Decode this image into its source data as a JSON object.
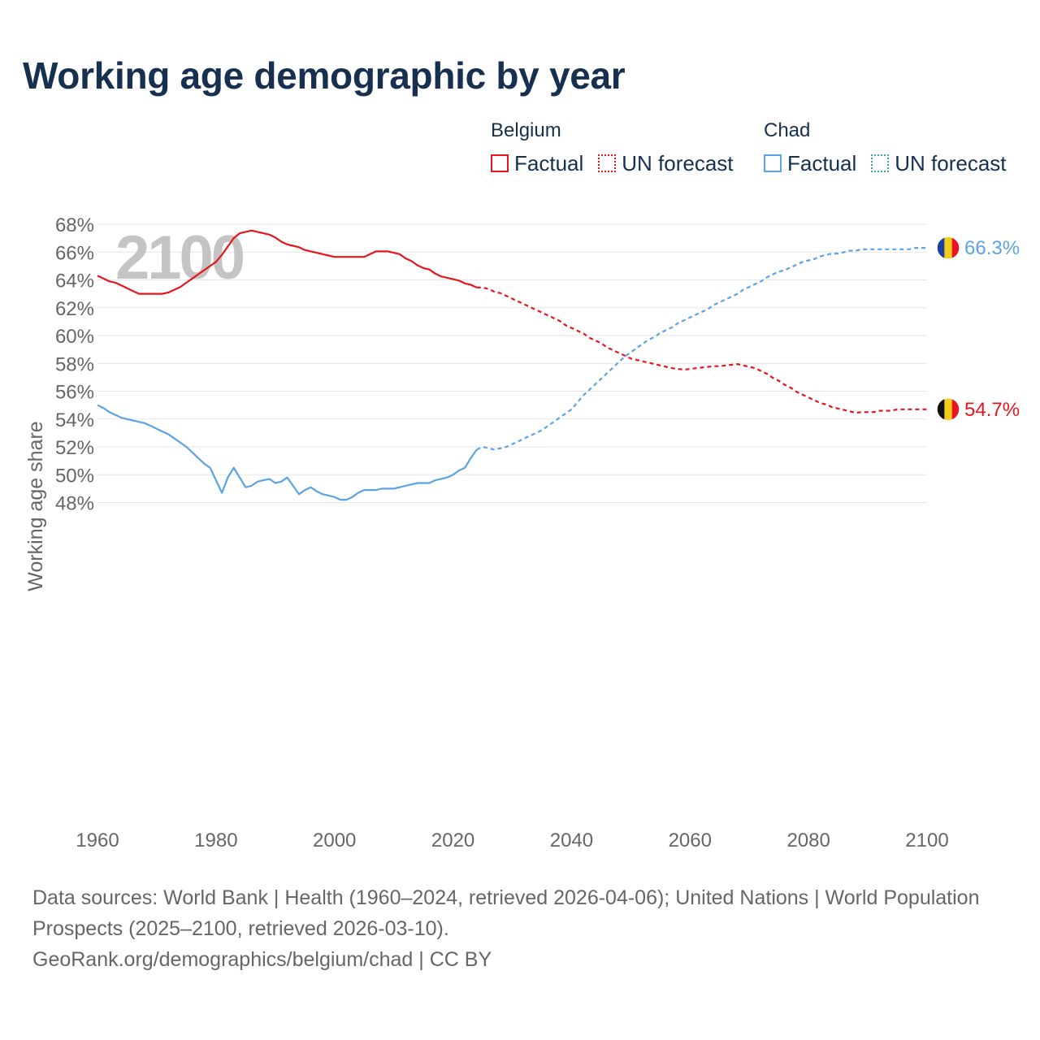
{
  "title": "Working age demographic by year",
  "legend": {
    "groups": [
      {
        "name": "Belgium",
        "color": "#e8141e",
        "factual_label": "Factual",
        "forecast_label": "UN forecast"
      },
      {
        "name": "Chad",
        "color": "#5ba3e4",
        "factual_label": "Factual",
        "forecast_label": "UN forecast"
      }
    ]
  },
  "year_watermark": "2100",
  "end_labels": {
    "belgium": "54.7%",
    "chad": "66.3%"
  },
  "flags": {
    "belgium": [
      "#111111",
      "#f2cc1d",
      "#e8141e"
    ],
    "chad": [
      "#1d3f9e",
      "#f2cc1d",
      "#e8141e"
    ]
  },
  "footer": {
    "sources": "Data sources: World Bank | Health (1960–2024, retrieved 2026-04-06); United Nations | World Population Prospects (2025–2100, retrieved 2026-03-10).",
    "url": "GeoRank.org/demographics/belgium/chad | CC BY"
  },
  "chart_data": {
    "type": "line",
    "title": "Working age demographic by year",
    "xlabel": "",
    "ylabel": "Working age share",
    "xlim": [
      1960,
      2100
    ],
    "ylim": [
      47,
      68
    ],
    "x_ticks": [
      1960,
      1980,
      2000,
      2020,
      2040,
      2060,
      2080,
      2100
    ],
    "y_ticks": [
      48,
      50,
      52,
      54,
      56,
      58,
      60,
      62,
      64,
      66,
      68
    ],
    "y_tick_labels": [
      "48%",
      "50%",
      "52%",
      "54%",
      "56%",
      "58%",
      "60%",
      "62%",
      "64%",
      "66%",
      "68%"
    ],
    "forecast_start": 2025,
    "series": [
      {
        "name": "Belgium",
        "color": "#e8141e",
        "points": [
          [
            1960,
            64.3
          ],
          [
            1961,
            64.1
          ],
          [
            1962,
            63.9
          ],
          [
            1963,
            63.8
          ],
          [
            1964,
            63.6
          ],
          [
            1965,
            63.4
          ],
          [
            1966,
            63.2
          ],
          [
            1967,
            63.0
          ],
          [
            1968,
            63.0
          ],
          [
            1969,
            63.0
          ],
          [
            1970,
            63.0
          ],
          [
            1971,
            63.0
          ],
          [
            1972,
            63.1
          ],
          [
            1973,
            63.3
          ],
          [
            1974,
            63.5
          ],
          [
            1975,
            63.8
          ],
          [
            1976,
            64.1
          ],
          [
            1977,
            64.4
          ],
          [
            1978,
            64.7
          ],
          [
            1979,
            65.0
          ],
          [
            1980,
            65.3
          ],
          [
            1981,
            65.8
          ],
          [
            1982,
            66.4
          ],
          [
            1983,
            67.0
          ],
          [
            1984,
            67.35
          ],
          [
            1985,
            67.45
          ],
          [
            1986,
            67.55
          ],
          [
            1987,
            67.45
          ],
          [
            1988,
            67.35
          ],
          [
            1989,
            67.25
          ],
          [
            1990,
            67.05
          ],
          [
            1991,
            66.75
          ],
          [
            1992,
            66.55
          ],
          [
            1993,
            66.45
          ],
          [
            1994,
            66.35
          ],
          [
            1995,
            66.15
          ],
          [
            1996,
            66.05
          ],
          [
            1997,
            65.95
          ],
          [
            1998,
            65.85
          ],
          [
            1999,
            65.75
          ],
          [
            2000,
            65.65
          ],
          [
            2001,
            65.65
          ],
          [
            2002,
            65.65
          ],
          [
            2003,
            65.65
          ],
          [
            2004,
            65.65
          ],
          [
            2005,
            65.65
          ],
          [
            2006,
            65.85
          ],
          [
            2007,
            66.05
          ],
          [
            2008,
            66.05
          ],
          [
            2009,
            66.05
          ],
          [
            2010,
            65.95
          ],
          [
            2011,
            65.85
          ],
          [
            2012,
            65.55
          ],
          [
            2013,
            65.35
          ],
          [
            2014,
            65.05
          ],
          [
            2015,
            64.85
          ],
          [
            2016,
            64.75
          ],
          [
            2017,
            64.45
          ],
          [
            2018,
            64.25
          ],
          [
            2019,
            64.15
          ],
          [
            2020,
            64.05
          ],
          [
            2021,
            63.95
          ],
          [
            2022,
            63.75
          ],
          [
            2023,
            63.65
          ],
          [
            2024,
            63.45
          ],
          [
            2025,
            63.45
          ],
          [
            2026,
            63.35
          ],
          [
            2027,
            63.15
          ],
          [
            2028,
            63.05
          ],
          [
            2029,
            62.85
          ],
          [
            2030,
            62.65
          ],
          [
            2031,
            62.45
          ],
          [
            2032,
            62.25
          ],
          [
            2033,
            62.05
          ],
          [
            2034,
            61.85
          ],
          [
            2035,
            61.65
          ],
          [
            2036,
            61.45
          ],
          [
            2037,
            61.25
          ],
          [
            2038,
            61.05
          ],
          [
            2039,
            60.75
          ],
          [
            2040,
            60.55
          ],
          [
            2041,
            60.35
          ],
          [
            2042,
            60.15
          ],
          [
            2043,
            59.85
          ],
          [
            2044,
            59.65
          ],
          [
            2045,
            59.45
          ],
          [
            2046,
            59.15
          ],
          [
            2047,
            58.95
          ],
          [
            2048,
            58.75
          ],
          [
            2049,
            58.55
          ],
          [
            2050,
            58.35
          ],
          [
            2051,
            58.25
          ],
          [
            2052,
            58.15
          ],
          [
            2053,
            58.05
          ],
          [
            2054,
            57.95
          ],
          [
            2055,
            57.85
          ],
          [
            2056,
            57.75
          ],
          [
            2057,
            57.65
          ],
          [
            2058,
            57.6
          ],
          [
            2059,
            57.55
          ],
          [
            2060,
            57.6
          ],
          [
            2061,
            57.65
          ],
          [
            2062,
            57.7
          ],
          [
            2063,
            57.75
          ],
          [
            2064,
            57.8
          ],
          [
            2065,
            57.8
          ],
          [
            2066,
            57.85
          ],
          [
            2067,
            57.9
          ],
          [
            2068,
            57.95
          ],
          [
            2069,
            57.85
          ],
          [
            2070,
            57.75
          ],
          [
            2071,
            57.65
          ],
          [
            2072,
            57.45
          ],
          [
            2073,
            57.25
          ],
          [
            2074,
            56.95
          ],
          [
            2075,
            56.75
          ],
          [
            2076,
            56.45
          ],
          [
            2077,
            56.25
          ],
          [
            2078,
            55.95
          ],
          [
            2079,
            55.75
          ],
          [
            2080,
            55.55
          ],
          [
            2081,
            55.35
          ],
          [
            2082,
            55.15
          ],
          [
            2083,
            55.05
          ],
          [
            2084,
            54.85
          ],
          [
            2085,
            54.75
          ],
          [
            2086,
            54.65
          ],
          [
            2087,
            54.55
          ],
          [
            2088,
            54.45
          ],
          [
            2089,
            54.5
          ],
          [
            2090,
            54.5
          ],
          [
            2091,
            54.5
          ],
          [
            2092,
            54.6
          ],
          [
            2093,
            54.6
          ],
          [
            2094,
            54.6
          ],
          [
            2095,
            54.7
          ],
          [
            2096,
            54.7
          ],
          [
            2097,
            54.7
          ],
          [
            2098,
            54.7
          ],
          [
            2099,
            54.7
          ],
          [
            2100,
            54.7
          ]
        ]
      },
      {
        "name": "Chad",
        "color": "#5ba3e4",
        "points": [
          [
            1960,
            55.0
          ],
          [
            1961,
            54.8
          ],
          [
            1962,
            54.5
          ],
          [
            1963,
            54.3
          ],
          [
            1964,
            54.1
          ],
          [
            1965,
            54.0
          ],
          [
            1966,
            53.9
          ],
          [
            1967,
            53.8
          ],
          [
            1968,
            53.7
          ],
          [
            1969,
            53.5
          ],
          [
            1970,
            53.3
          ],
          [
            1971,
            53.1
          ],
          [
            1972,
            52.9
          ],
          [
            1973,
            52.6
          ],
          [
            1974,
            52.3
          ],
          [
            1975,
            52.0
          ],
          [
            1976,
            51.6
          ],
          [
            1977,
            51.2
          ],
          [
            1978,
            50.8
          ],
          [
            1979,
            50.5
          ],
          [
            1980,
            49.6
          ],
          [
            1981,
            48.7
          ],
          [
            1982,
            49.8
          ],
          [
            1983,
            50.5
          ],
          [
            1984,
            49.8
          ],
          [
            1985,
            49.1
          ],
          [
            1986,
            49.2
          ],
          [
            1987,
            49.5
          ],
          [
            1988,
            49.6
          ],
          [
            1989,
            49.7
          ],
          [
            1990,
            49.4
          ],
          [
            1991,
            49.5
          ],
          [
            1992,
            49.8
          ],
          [
            1993,
            49.2
          ],
          [
            1994,
            48.6
          ],
          [
            1995,
            48.9
          ],
          [
            1996,
            49.1
          ],
          [
            1997,
            48.8
          ],
          [
            1998,
            48.6
          ],
          [
            1999,
            48.5
          ],
          [
            2000,
            48.4
          ],
          [
            2001,
            48.2
          ],
          [
            2002,
            48.2
          ],
          [
            2003,
            48.4
          ],
          [
            2004,
            48.7
          ],
          [
            2005,
            48.9
          ],
          [
            2006,
            48.9
          ],
          [
            2007,
            48.9
          ],
          [
            2008,
            49.0
          ],
          [
            2009,
            49.0
          ],
          [
            2010,
            49.0
          ],
          [
            2011,
            49.1
          ],
          [
            2012,
            49.2
          ],
          [
            2013,
            49.3
          ],
          [
            2014,
            49.4
          ],
          [
            2015,
            49.4
          ],
          [
            2016,
            49.4
          ],
          [
            2017,
            49.6
          ],
          [
            2018,
            49.7
          ],
          [
            2019,
            49.8
          ],
          [
            2020,
            50.0
          ],
          [
            2021,
            50.3
          ],
          [
            2022,
            50.5
          ],
          [
            2023,
            51.2
          ],
          [
            2024,
            51.8
          ],
          [
            2025,
            52.0
          ],
          [
            2026,
            51.9
          ],
          [
            2027,
            51.8
          ],
          [
            2028,
            51.9
          ],
          [
            2029,
            52.0
          ],
          [
            2030,
            52.2
          ],
          [
            2031,
            52.4
          ],
          [
            2032,
            52.6
          ],
          [
            2033,
            52.8
          ],
          [
            2034,
            53.0
          ],
          [
            2035,
            53.2
          ],
          [
            2036,
            53.5
          ],
          [
            2037,
            53.8
          ],
          [
            2038,
            54.1
          ],
          [
            2039,
            54.4
          ],
          [
            2040,
            54.7
          ],
          [
            2041,
            55.2
          ],
          [
            2042,
            55.7
          ],
          [
            2043,
            56.1
          ],
          [
            2044,
            56.5
          ],
          [
            2045,
            56.9
          ],
          [
            2046,
            57.3
          ],
          [
            2047,
            57.7
          ],
          [
            2048,
            58.1
          ],
          [
            2049,
            58.5
          ],
          [
            2050,
            58.8
          ],
          [
            2051,
            59.1
          ],
          [
            2052,
            59.4
          ],
          [
            2053,
            59.7
          ],
          [
            2054,
            59.9
          ],
          [
            2055,
            60.2
          ],
          [
            2056,
            60.4
          ],
          [
            2057,
            60.6
          ],
          [
            2058,
            60.9
          ],
          [
            2059,
            61.1
          ],
          [
            2060,
            61.3
          ],
          [
            2061,
            61.5
          ],
          [
            2062,
            61.7
          ],
          [
            2063,
            61.9
          ],
          [
            2064,
            62.2
          ],
          [
            2065,
            62.4
          ],
          [
            2066,
            62.6
          ],
          [
            2067,
            62.8
          ],
          [
            2068,
            63.0
          ],
          [
            2069,
            63.3
          ],
          [
            2070,
            63.5
          ],
          [
            2071,
            63.7
          ],
          [
            2072,
            63.9
          ],
          [
            2073,
            64.2
          ],
          [
            2074,
            64.4
          ],
          [
            2075,
            64.6
          ],
          [
            2076,
            64.7
          ],
          [
            2077,
            64.9
          ],
          [
            2078,
            65.1
          ],
          [
            2079,
            65.3
          ],
          [
            2080,
            65.4
          ],
          [
            2081,
            65.5
          ],
          [
            2082,
            65.7
          ],
          [
            2083,
            65.8
          ],
          [
            2084,
            65.9
          ],
          [
            2085,
            65.9
          ],
          [
            2086,
            66.0
          ],
          [
            2087,
            66.1
          ],
          [
            2088,
            66.1
          ],
          [
            2089,
            66.2
          ],
          [
            2090,
            66.2
          ],
          [
            2091,
            66.2
          ],
          [
            2092,
            66.2
          ],
          [
            2093,
            66.2
          ],
          [
            2094,
            66.2
          ],
          [
            2095,
            66.2
          ],
          [
            2096,
            66.2
          ],
          [
            2097,
            66.2
          ],
          [
            2098,
            66.3
          ],
          [
            2099,
            66.3
          ],
          [
            2100,
            66.3
          ]
        ]
      }
    ]
  }
}
